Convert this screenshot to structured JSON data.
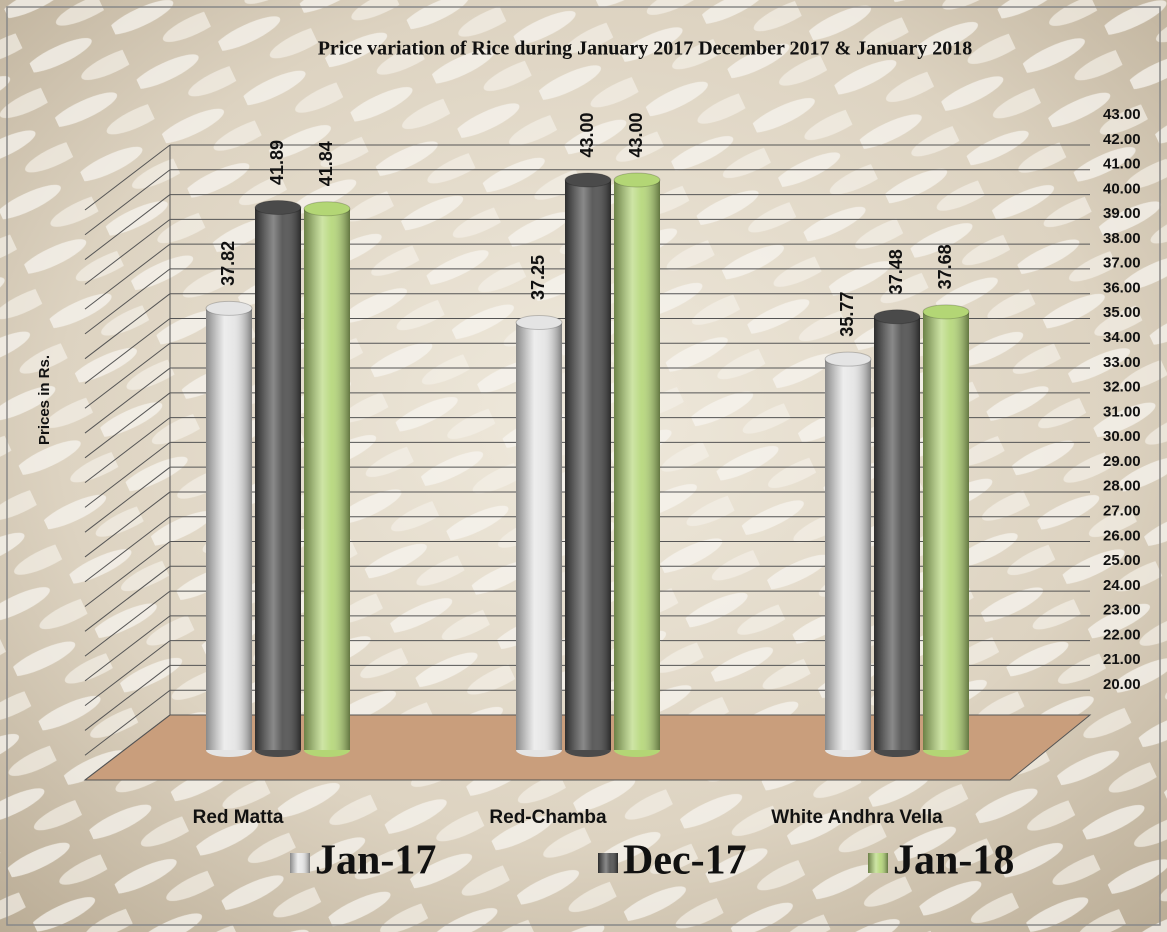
{
  "chart_data": {
    "type": "bar3d",
    "title": "Price variation of Rice during  January 2017 December  2017 &  January  2018",
    "y_label": "Prices in Rs.",
    "categories": [
      "Red Matta",
      "Red-Chamba",
      "White Andhra Vella"
    ],
    "series": [
      {
        "name": "Jan-17",
        "color": "#e4e4e4",
        "values": [
          37.82,
          37.25,
          35.77
        ],
        "value_labels": [
          "37.82",
          "37.25",
          "35.77"
        ]
      },
      {
        "name": "Dec-17",
        "color": "#4a4a4a",
        "values": [
          41.89,
          43.0,
          37.48
        ],
        "value_labels": [
          "41.89",
          "43.00",
          "37.48"
        ]
      },
      {
        "name": "Jan-18",
        "color": "#b3d675",
        "values": [
          41.84,
          43.0,
          37.68
        ],
        "value_labels": [
          "41.84",
          "43.00",
          "37.68"
        ]
      }
    ],
    "ylim": [
      20,
      43
    ],
    "yticks": [
      {
        "value": 20,
        "label": "20.00"
      },
      {
        "value": 21,
        "label": "21.00"
      },
      {
        "value": 22,
        "label": "22.00"
      },
      {
        "value": 23,
        "label": "23.00"
      },
      {
        "value": 24,
        "label": "24.00"
      },
      {
        "value": 25,
        "label": "25.00"
      },
      {
        "value": 26,
        "label": "26.00"
      },
      {
        "value": 27,
        "label": "27.00"
      },
      {
        "value": 28,
        "label": "28.00"
      },
      {
        "value": 29,
        "label": "29.00"
      },
      {
        "value": 30,
        "label": "30.00"
      },
      {
        "value": 31,
        "label": "31.00"
      },
      {
        "value": 32,
        "label": "32.00"
      },
      {
        "value": 33,
        "label": "33.00"
      },
      {
        "value": 34,
        "label": "34.00"
      },
      {
        "value": 35,
        "label": "35.00"
      },
      {
        "value": 36,
        "label": "36.00"
      },
      {
        "value": 37,
        "label": "37.00"
      },
      {
        "value": 38,
        "label": "38.00"
      },
      {
        "value": 39,
        "label": "39.00"
      },
      {
        "value": 40,
        "label": "40.00"
      },
      {
        "value": 41,
        "label": "41.00"
      },
      {
        "value": 42,
        "label": "42.00"
      },
      {
        "value": 43,
        "label": "43.00"
      }
    ],
    "grid": true
  }
}
